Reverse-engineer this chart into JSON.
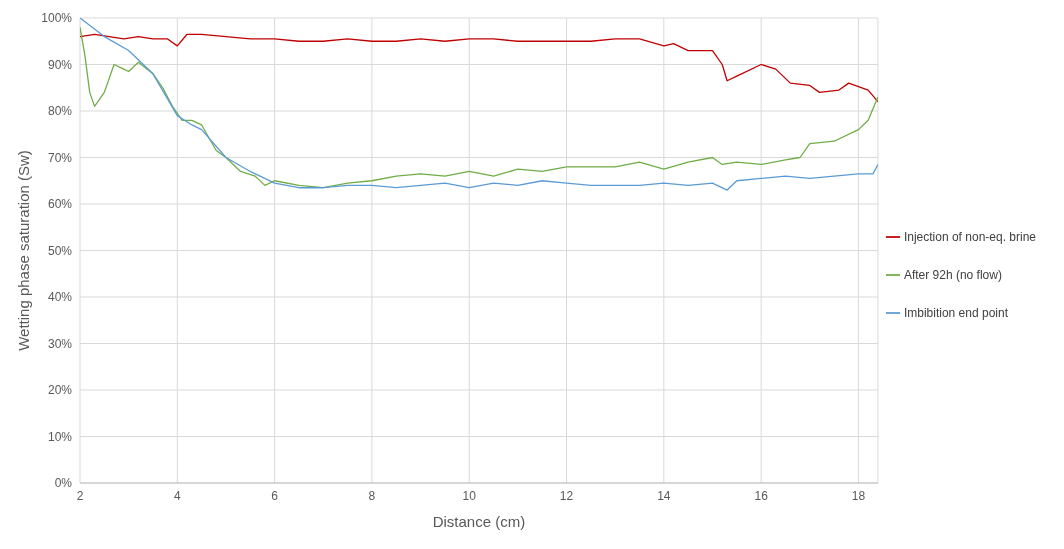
{
  "chart_data": {
    "type": "line",
    "xlabel": "Distance (cm)",
    "ylabel": "Wetting phase saturation (Sw)",
    "xlim": [
      2,
      18.4
    ],
    "xticks": [
      2,
      4,
      6,
      8,
      10,
      12,
      14,
      16,
      18
    ],
    "ylim": [
      0,
      100
    ],
    "yticks": [
      {
        "value": 0,
        "label": "0%"
      },
      {
        "value": 10,
        "label": "10%"
      },
      {
        "value": 20,
        "label": "20%"
      },
      {
        "value": 30,
        "label": "30%"
      },
      {
        "value": 40,
        "label": "40%"
      },
      {
        "value": 50,
        "label": "50%"
      },
      {
        "value": 60,
        "label": "60%"
      },
      {
        "value": 70,
        "label": "70%"
      },
      {
        "value": 80,
        "label": "80%"
      },
      {
        "value": 90,
        "label": "90%"
      },
      {
        "value": 100,
        "label": "100%"
      }
    ],
    "grid": true,
    "legend": "right",
    "marker": "none",
    "line_style": "solid",
    "series": [
      {
        "name": "Injection of non-eq. brine",
        "color": "#c00000",
        "x": [
          2,
          2.3,
          2.6,
          2.9,
          3.2,
          3.5,
          3.8,
          4,
          4.2,
          4.5,
          5,
          5.5,
          6,
          6.5,
          7,
          7.5,
          8,
          8.5,
          9,
          9.5,
          10,
          10.5,
          11,
          11.5,
          12,
          12.5,
          13,
          13.5,
          14,
          14.2,
          14.5,
          15,
          15.2,
          15.3,
          15.5,
          16,
          16.3,
          16.6,
          17,
          17.2,
          17.6,
          17.8,
          18.2,
          18.4
        ],
        "values": [
          96,
          96.5,
          96,
          95.5,
          96,
          95.5,
          95.5,
          94,
          96.5,
          96.5,
          96,
          95.5,
          95.5,
          95,
          95,
          95.5,
          95,
          95,
          95.5,
          95,
          95.5,
          95.5,
          95,
          95,
          95,
          95,
          95.5,
          95.5,
          94,
          94.5,
          93,
          93,
          90,
          86.5,
          87.5,
          90,
          89,
          86,
          85.5,
          84,
          84.5,
          86,
          84.5,
          82
        ]
      },
      {
        "name": "After 92h (no flow)",
        "color": "#70ad47",
        "x": [
          2,
          2.1,
          2.2,
          2.3,
          2.5,
          2.7,
          2.9,
          3,
          3.2,
          3.5,
          3.7,
          3.9,
          4.1,
          4.3,
          4.5,
          4.8,
          5,
          5.3,
          5.6,
          5.8,
          6,
          6.5,
          7,
          7.5,
          8,
          8.5,
          9,
          9.5,
          10,
          10.5,
          11,
          11.5,
          12,
          12.5,
          13,
          13.5,
          14,
          14.5,
          15,
          15.2,
          15.5,
          16,
          16.5,
          16.8,
          17,
          17.5,
          18,
          18.2,
          18.4
        ],
        "values": [
          98,
          92,
          84,
          81,
          84,
          90,
          89,
          88.5,
          90.5,
          88,
          85,
          81,
          78,
          78,
          77,
          71.5,
          70,
          67,
          66,
          64,
          65,
          64,
          63.5,
          64.5,
          65,
          66,
          66.5,
          66,
          67,
          66,
          67.5,
          67,
          68,
          68,
          68,
          69,
          67.5,
          69,
          70,
          68.5,
          69,
          68.5,
          69.5,
          70,
          73,
          73.5,
          76,
          78,
          83
        ]
      },
      {
        "name": "Imbibition end point",
        "color": "#5b9bd5",
        "x": [
          2,
          2.5,
          3,
          3.5,
          4,
          4.3,
          4.5,
          5,
          5.5,
          6,
          6.5,
          7,
          7.5,
          8,
          8.5,
          9,
          9.5,
          10,
          10.5,
          11,
          11.5,
          12,
          12.5,
          13,
          13.5,
          14,
          14.5,
          15,
          15.3,
          15.5,
          16,
          16.5,
          17,
          17.5,
          18,
          18.3,
          18.4
        ],
        "values": [
          100,
          96,
          93,
          88,
          79,
          77,
          76,
          70,
          67,
          64.5,
          63.5,
          63.5,
          64,
          64,
          63.5,
          64,
          64.5,
          63.5,
          64.5,
          64,
          65,
          64.5,
          64,
          64,
          64,
          64.5,
          64,
          64.5,
          63,
          65,
          65.5,
          66,
          65.5,
          66,
          66.5,
          66.5,
          68.5
        ]
      }
    ]
  }
}
